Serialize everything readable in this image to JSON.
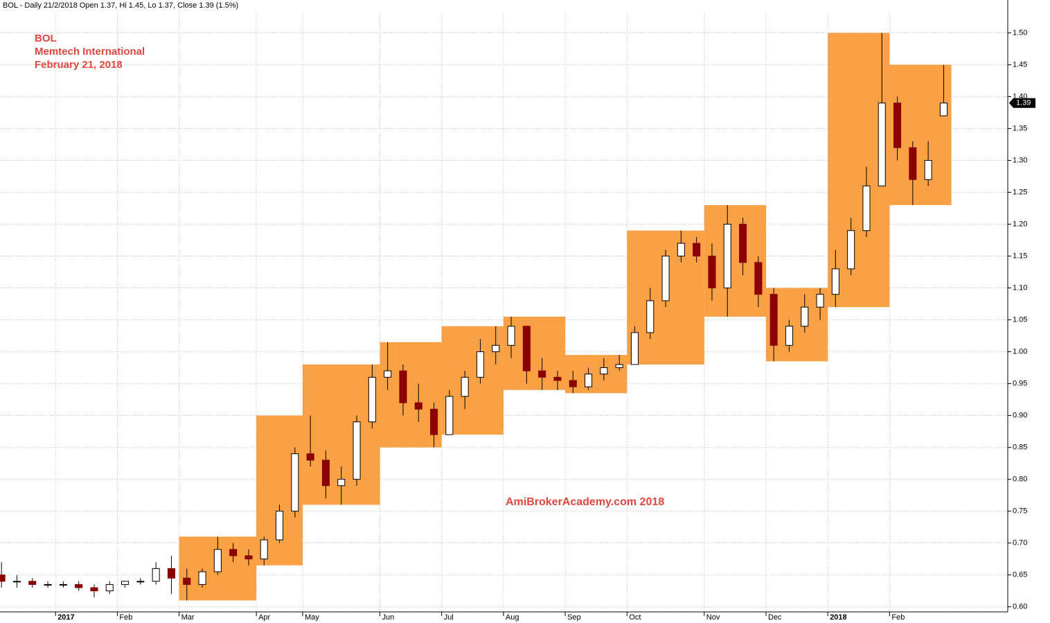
{
  "chart_data": {
    "type": "candlestick",
    "header": "BOL - Daily 21/2/2018 Open 1.37, Hi 1.45, Lo 1.37, Close 1.39 (1.5%)",
    "title_lines": [
      "BOL",
      "Memtech International",
      "February 21, 2018"
    ],
    "watermark": "AmiBrokerAcademy.com 2018",
    "categories": [
      null,
      null,
      null,
      null,
      "2017",
      null,
      null,
      null,
      "Feb",
      null,
      null,
      null,
      "Mar",
      null,
      null,
      null,
      null,
      "Apr",
      null,
      null,
      "May",
      null,
      null,
      null,
      null,
      "Jun",
      null,
      null,
      null,
      "Jul",
      null,
      null,
      null,
      "Aug",
      null,
      null,
      null,
      "Sep",
      null,
      null,
      null,
      "Oct",
      null,
      null,
      null,
      null,
      "Nov",
      null,
      null,
      null,
      "Dec",
      null,
      null,
      null,
      "2018",
      null,
      null,
      null,
      "Feb",
      null,
      null,
      null
    ],
    "open": [
      0.65,
      0.64,
      0.64,
      0.635,
      0.635,
      0.635,
      0.63,
      0.625,
      0.635,
      0.64,
      0.64,
      0.66,
      0.645,
      0.635,
      0.655,
      0.69,
      0.68,
      0.675,
      0.705,
      0.75,
      0.84,
      0.83,
      0.79,
      0.8,
      0.89,
      0.96,
      0.97,
      0.92,
      0.91,
      0.87,
      0.93,
      0.96,
      1.0,
      1.01,
      1.04,
      0.97,
      0.96,
      0.955,
      0.945,
      0.965,
      0.975,
      0.98,
      1.03,
      1.08,
      1.15,
      1.17,
      1.15,
      1.1,
      1.2,
      1.14,
      1.09,
      1.01,
      1.04,
      1.07,
      1.09,
      1.13,
      1.19,
      1.26,
      1.39,
      1.32,
      1.27,
      1.37
    ],
    "high": [
      0.67,
      0.65,
      0.645,
      0.64,
      0.64,
      0.64,
      0.635,
      0.64,
      0.64,
      0.645,
      0.67,
      0.68,
      0.66,
      0.66,
      0.71,
      0.7,
      0.69,
      0.71,
      0.76,
      0.85,
      0.9,
      0.845,
      0.82,
      0.9,
      0.98,
      1.015,
      0.98,
      0.95,
      0.92,
      0.94,
      0.97,
      1.02,
      1.04,
      1.055,
      1.04,
      0.99,
      0.97,
      0.97,
      0.975,
      0.99,
      0.995,
      1.04,
      1.1,
      1.16,
      1.19,
      1.18,
      1.17,
      1.23,
      1.21,
      1.15,
      1.1,
      1.05,
      1.09,
      1.1,
      1.16,
      1.21,
      1.29,
      1.5,
      1.4,
      1.33,
      1.33,
      1.45
    ],
    "low": [
      0.63,
      0.63,
      0.63,
      0.63,
      0.63,
      0.625,
      0.615,
      0.62,
      0.63,
      0.635,
      0.635,
      0.62,
      0.61,
      0.63,
      0.65,
      0.67,
      0.665,
      0.665,
      0.7,
      0.74,
      0.82,
      0.77,
      0.76,
      0.79,
      0.88,
      0.94,
      0.9,
      0.89,
      0.85,
      0.87,
      0.91,
      0.95,
      0.98,
      0.99,
      0.95,
      0.94,
      0.94,
      0.935,
      0.94,
      0.955,
      0.97,
      0.98,
      1.02,
      1.07,
      1.14,
      1.14,
      1.08,
      1.055,
      1.12,
      1.07,
      0.985,
      1.0,
      1.03,
      1.05,
      1.07,
      1.12,
      1.18,
      1.26,
      1.3,
      1.23,
      1.26,
      1.37
    ],
    "close": [
      0.64,
      0.64,
      0.635,
      0.635,
      0.635,
      0.63,
      0.625,
      0.635,
      0.64,
      0.64,
      0.66,
      0.645,
      0.635,
      0.655,
      0.69,
      0.68,
      0.675,
      0.705,
      0.75,
      0.84,
      0.83,
      0.79,
      0.8,
      0.89,
      0.96,
      0.97,
      0.92,
      0.91,
      0.87,
      0.93,
      0.96,
      1.0,
      1.01,
      1.04,
      0.97,
      0.96,
      0.955,
      0.945,
      0.965,
      0.975,
      0.98,
      1.03,
      1.08,
      1.15,
      1.17,
      1.15,
      1.1,
      1.2,
      1.14,
      1.09,
      1.01,
      1.04,
      1.07,
      1.09,
      1.13,
      1.19,
      1.26,
      1.39,
      1.32,
      1.27,
      1.3,
      1.39
    ],
    "range_high": [
      null,
      null,
      0.71,
      0.9,
      0.98,
      1.015,
      1.04,
      1.055,
      0.995,
      1.19,
      1.23,
      1.1,
      1.5,
      1.45
    ],
    "range_low": [
      null,
      null,
      0.61,
      0.665,
      0.76,
      0.85,
      0.87,
      0.94,
      0.935,
      0.98,
      1.055,
      0.985,
      1.07,
      1.23
    ],
    "up_color": "#ffffff",
    "down_color": "#8b0000",
    "range_color": "#f9a144",
    "title_color": "#e0463e",
    "ylim": [
      0.592,
      1.532
    ],
    "yticks": [
      {
        "value": 0.6,
        "label": "0.60"
      },
      0.65,
      {
        "value": 0.7,
        "label": "0.70"
      },
      0.75,
      {
        "value": 0.8,
        "label": "0.80"
      },
      0.85,
      {
        "value": 0.9,
        "label": "0.90"
      },
      0.95,
      {
        "value": 1.0,
        "label": "1.00"
      },
      1.05,
      {
        "value": 1.1,
        "label": "1.10"
      },
      1.15,
      {
        "value": 1.2,
        "label": "1.20"
      },
      1.25,
      {
        "value": 1.3,
        "label": "1.30"
      },
      1.35,
      {
        "value": 1.4,
        "label": "1.40"
      },
      1.45,
      {
        "value": 1.5,
        "label": "1.50"
      }
    ],
    "grid": true
  }
}
